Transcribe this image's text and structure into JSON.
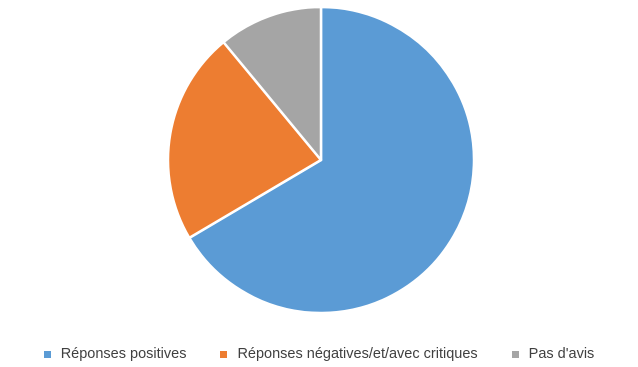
{
  "chart_data": {
    "type": "pie",
    "categories": [
      "Réponses positives",
      "Réponses négatives/et/avec critiques",
      "Pas d'avis"
    ],
    "values": [
      66.5,
      22.5,
      11
    ],
    "colors": [
      "#5B9BD5",
      "#ED7D31",
      "#A5A5A5"
    ],
    "start_angle_deg": 0,
    "direction": "clockwise",
    "legend_position": "bottom"
  },
  "legend": {
    "items": [
      {
        "label": "Réponses positives",
        "color": "#5B9BD5"
      },
      {
        "label": "Réponses négatives/et/avec critiques",
        "color": "#ED7D31"
      },
      {
        "label": "Pas d'avis",
        "color": "#A5A5A5"
      }
    ]
  }
}
